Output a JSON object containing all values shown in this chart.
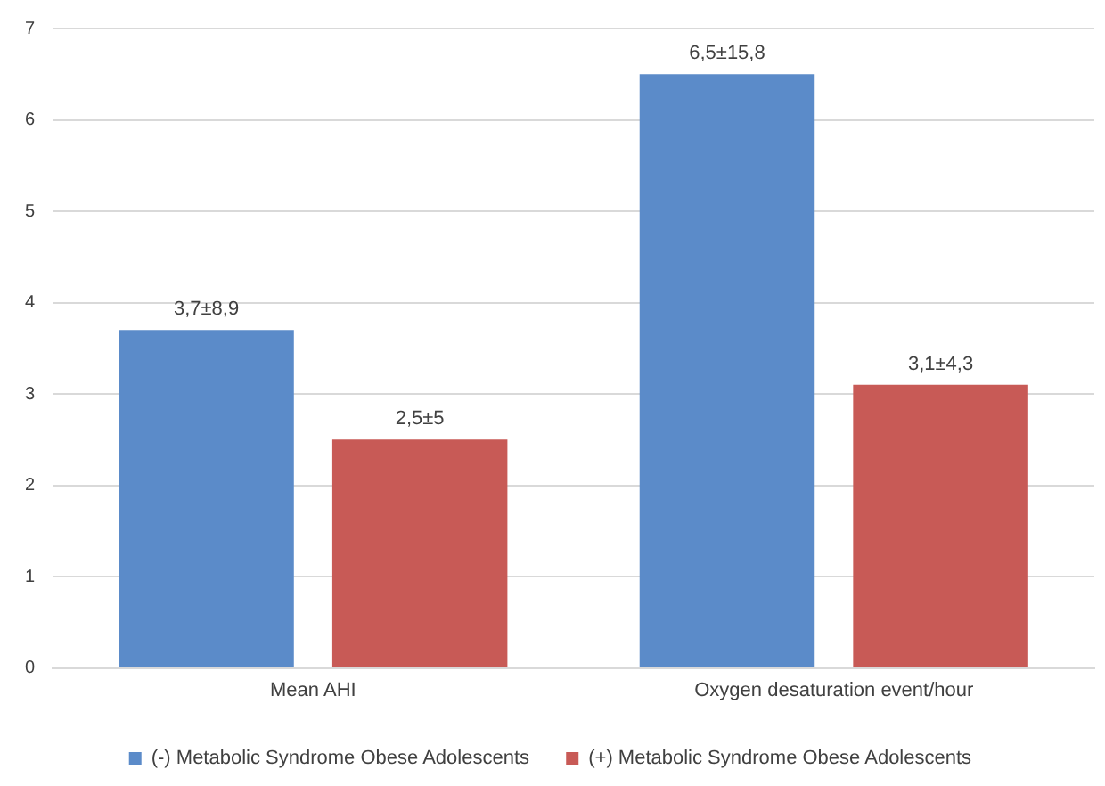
{
  "chart_data": {
    "type": "bar",
    "categories": [
      "Mean AHI",
      "Oxygen desaturation event/hour"
    ],
    "series": [
      {
        "name": "(-) Metabolic Syndrome Obese Adolescents",
        "color": "#5b8bc9",
        "values": [
          3.7,
          6.5
        ],
        "value_labels": [
          "3,7±8,9",
          "6,5±15,8"
        ]
      },
      {
        "name": "(+) Metabolic Syndrome Obese Adolescents",
        "color": "#c85a56",
        "values": [
          2.5,
          3.1
        ],
        "value_labels": [
          "2,5±5",
          "3,1±4,3"
        ]
      }
    ],
    "ylim": [
      0,
      7
    ],
    "yticks": [
      0,
      1,
      2,
      3,
      4,
      5,
      6,
      7
    ],
    "grid": "y",
    "legend": "bottom"
  }
}
